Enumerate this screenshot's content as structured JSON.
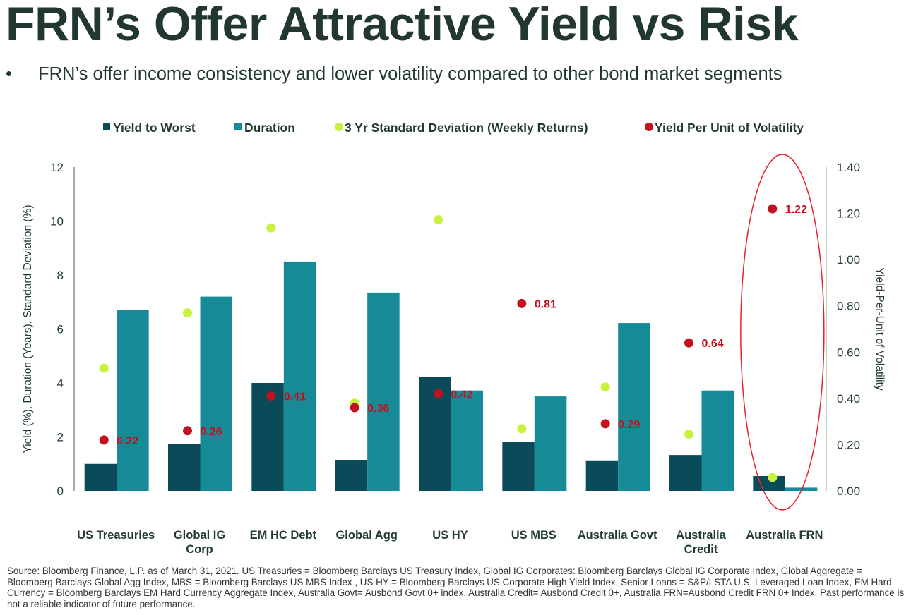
{
  "header": {
    "title": "FRN’s Offer Attractive Yield vs Risk",
    "bullet_symbol": "•",
    "bullet": "FRN’s offer income consistency and lower volatility compared to other bond market segments"
  },
  "chart_data": {
    "type": "bar",
    "categories": [
      "US Treasuries",
      "Global IG Corp",
      "EM HC Debt",
      "Global Agg",
      "US HY",
      "US MBS",
      "Australia Govt",
      "Australia Credit",
      "Australia FRN"
    ],
    "category_lines": [
      [
        "US Treasuries"
      ],
      [
        "Global IG",
        "Corp"
      ],
      [
        "EM HC Debt"
      ],
      [
        "Global Agg"
      ],
      [
        "US HY"
      ],
      [
        "US MBS"
      ],
      [
        "Australia Govt"
      ],
      [
        "Australia",
        "Credit"
      ],
      [
        "Australia FRN"
      ]
    ],
    "series": [
      {
        "name": "Yield to Worst",
        "type": "bar",
        "axis": "left",
        "color": "#0b4a58",
        "values": [
          1.0,
          1.75,
          4.0,
          1.15,
          4.22,
          1.82,
          1.13,
          1.33,
          0.55
        ]
      },
      {
        "name": "Duration",
        "type": "bar",
        "axis": "left",
        "color": "#168a96",
        "values": [
          6.7,
          7.2,
          8.5,
          7.35,
          3.72,
          3.5,
          6.22,
          3.72,
          0.12
        ]
      },
      {
        "name": "3 Yr Standard Deviation (Weekly Returns)",
        "type": "scatter",
        "axis": "left",
        "color": "#c9f23f",
        "values": [
          4.55,
          6.6,
          9.75,
          3.25,
          10.05,
          2.3,
          3.85,
          2.1,
          0.5
        ]
      },
      {
        "name": "Yield Per Unit of Volatility",
        "type": "scatter",
        "axis": "right",
        "color": "#c0121f",
        "values": [
          0.22,
          0.26,
          0.41,
          0.36,
          0.42,
          0.81,
          0.29,
          0.64,
          1.22
        ],
        "labels": [
          "0.22",
          "0.26",
          "0.41",
          "0.36",
          "0.42",
          "0.81",
          "0.29",
          "0.64",
          "1.22"
        ]
      }
    ],
    "ylabel": "Yield (%), Duration (Years), Standard Deviation (%)",
    "ylim": [
      0,
      12
    ],
    "yticks": [
      "0",
      "2",
      "4",
      "6",
      "8",
      "10",
      "12"
    ],
    "y2label": "Yield-Per-Unit of Volatility",
    "y2lim": [
      0,
      1.4
    ],
    "y2ticks": [
      "0.00",
      "0.20",
      "0.40",
      "0.60",
      "0.80",
      "1.00",
      "1.20",
      "1.40"
    ],
    "highlight": "Australia FRN",
    "highlight_color": "#e8202a",
    "legend_position": "top"
  },
  "footer": {
    "source": "Source: Bloomberg Finance, L.P. as of March 31, 2021. US Treasuries = Bloomberg Barclays US Treasury Index, Global IG Corporates: Bloomberg Barclays Global IG Corporate Index, Global Aggregate = Bloomberg Barclays Global Agg Index, MBS = Bloomberg Barclays US MBS Index , US HY = Bloomberg Barclays US Corporate High Yield Index, Senior Loans = S&P/LSTA U.S. Leveraged Loan Index, EM Hard Currency = Bloomberg Barclays EM Hard Currency Aggregate Index, Australia Govt= Ausbond Govt 0+ index, Australia Credit= Ausbond Credit 0+, Australia FRN=Ausbond Credit FRN 0+ Index. Past performance is not a reliable indicator of future performance."
  }
}
